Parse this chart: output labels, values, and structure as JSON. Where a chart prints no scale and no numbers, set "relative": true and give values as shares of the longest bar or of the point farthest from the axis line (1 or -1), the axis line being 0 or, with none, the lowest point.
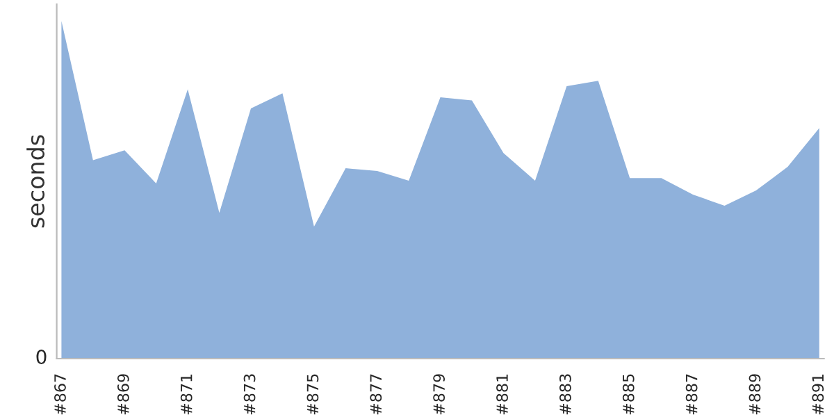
{
  "chart_data": {
    "type": "area",
    "ylabel": "seconds",
    "relative": true,
    "grid": false,
    "legend": false,
    "categories": [
      "#867",
      null,
      "#869",
      null,
      "#871",
      null,
      "#873",
      null,
      "#875",
      null,
      "#877",
      null,
      "#879",
      null,
      "#881",
      null,
      "#883",
      null,
      "#885",
      null,
      "#887",
      null,
      "#889",
      null,
      "#891"
    ],
    "series": [
      {
        "color": "#8fb1db",
        "values": [
          1.0,
          0.588,
          0.617,
          0.519,
          0.798,
          0.432,
          0.741,
          0.786,
          0.391,
          0.564,
          0.556,
          0.527,
          0.774,
          0.765,
          0.609,
          0.527,
          0.807,
          0.823,
          0.535,
          0.535,
          0.486,
          0.453,
          0.498,
          0.568,
          0.683
        ]
      }
    ],
    "annotations": [
      "0"
    ]
  }
}
